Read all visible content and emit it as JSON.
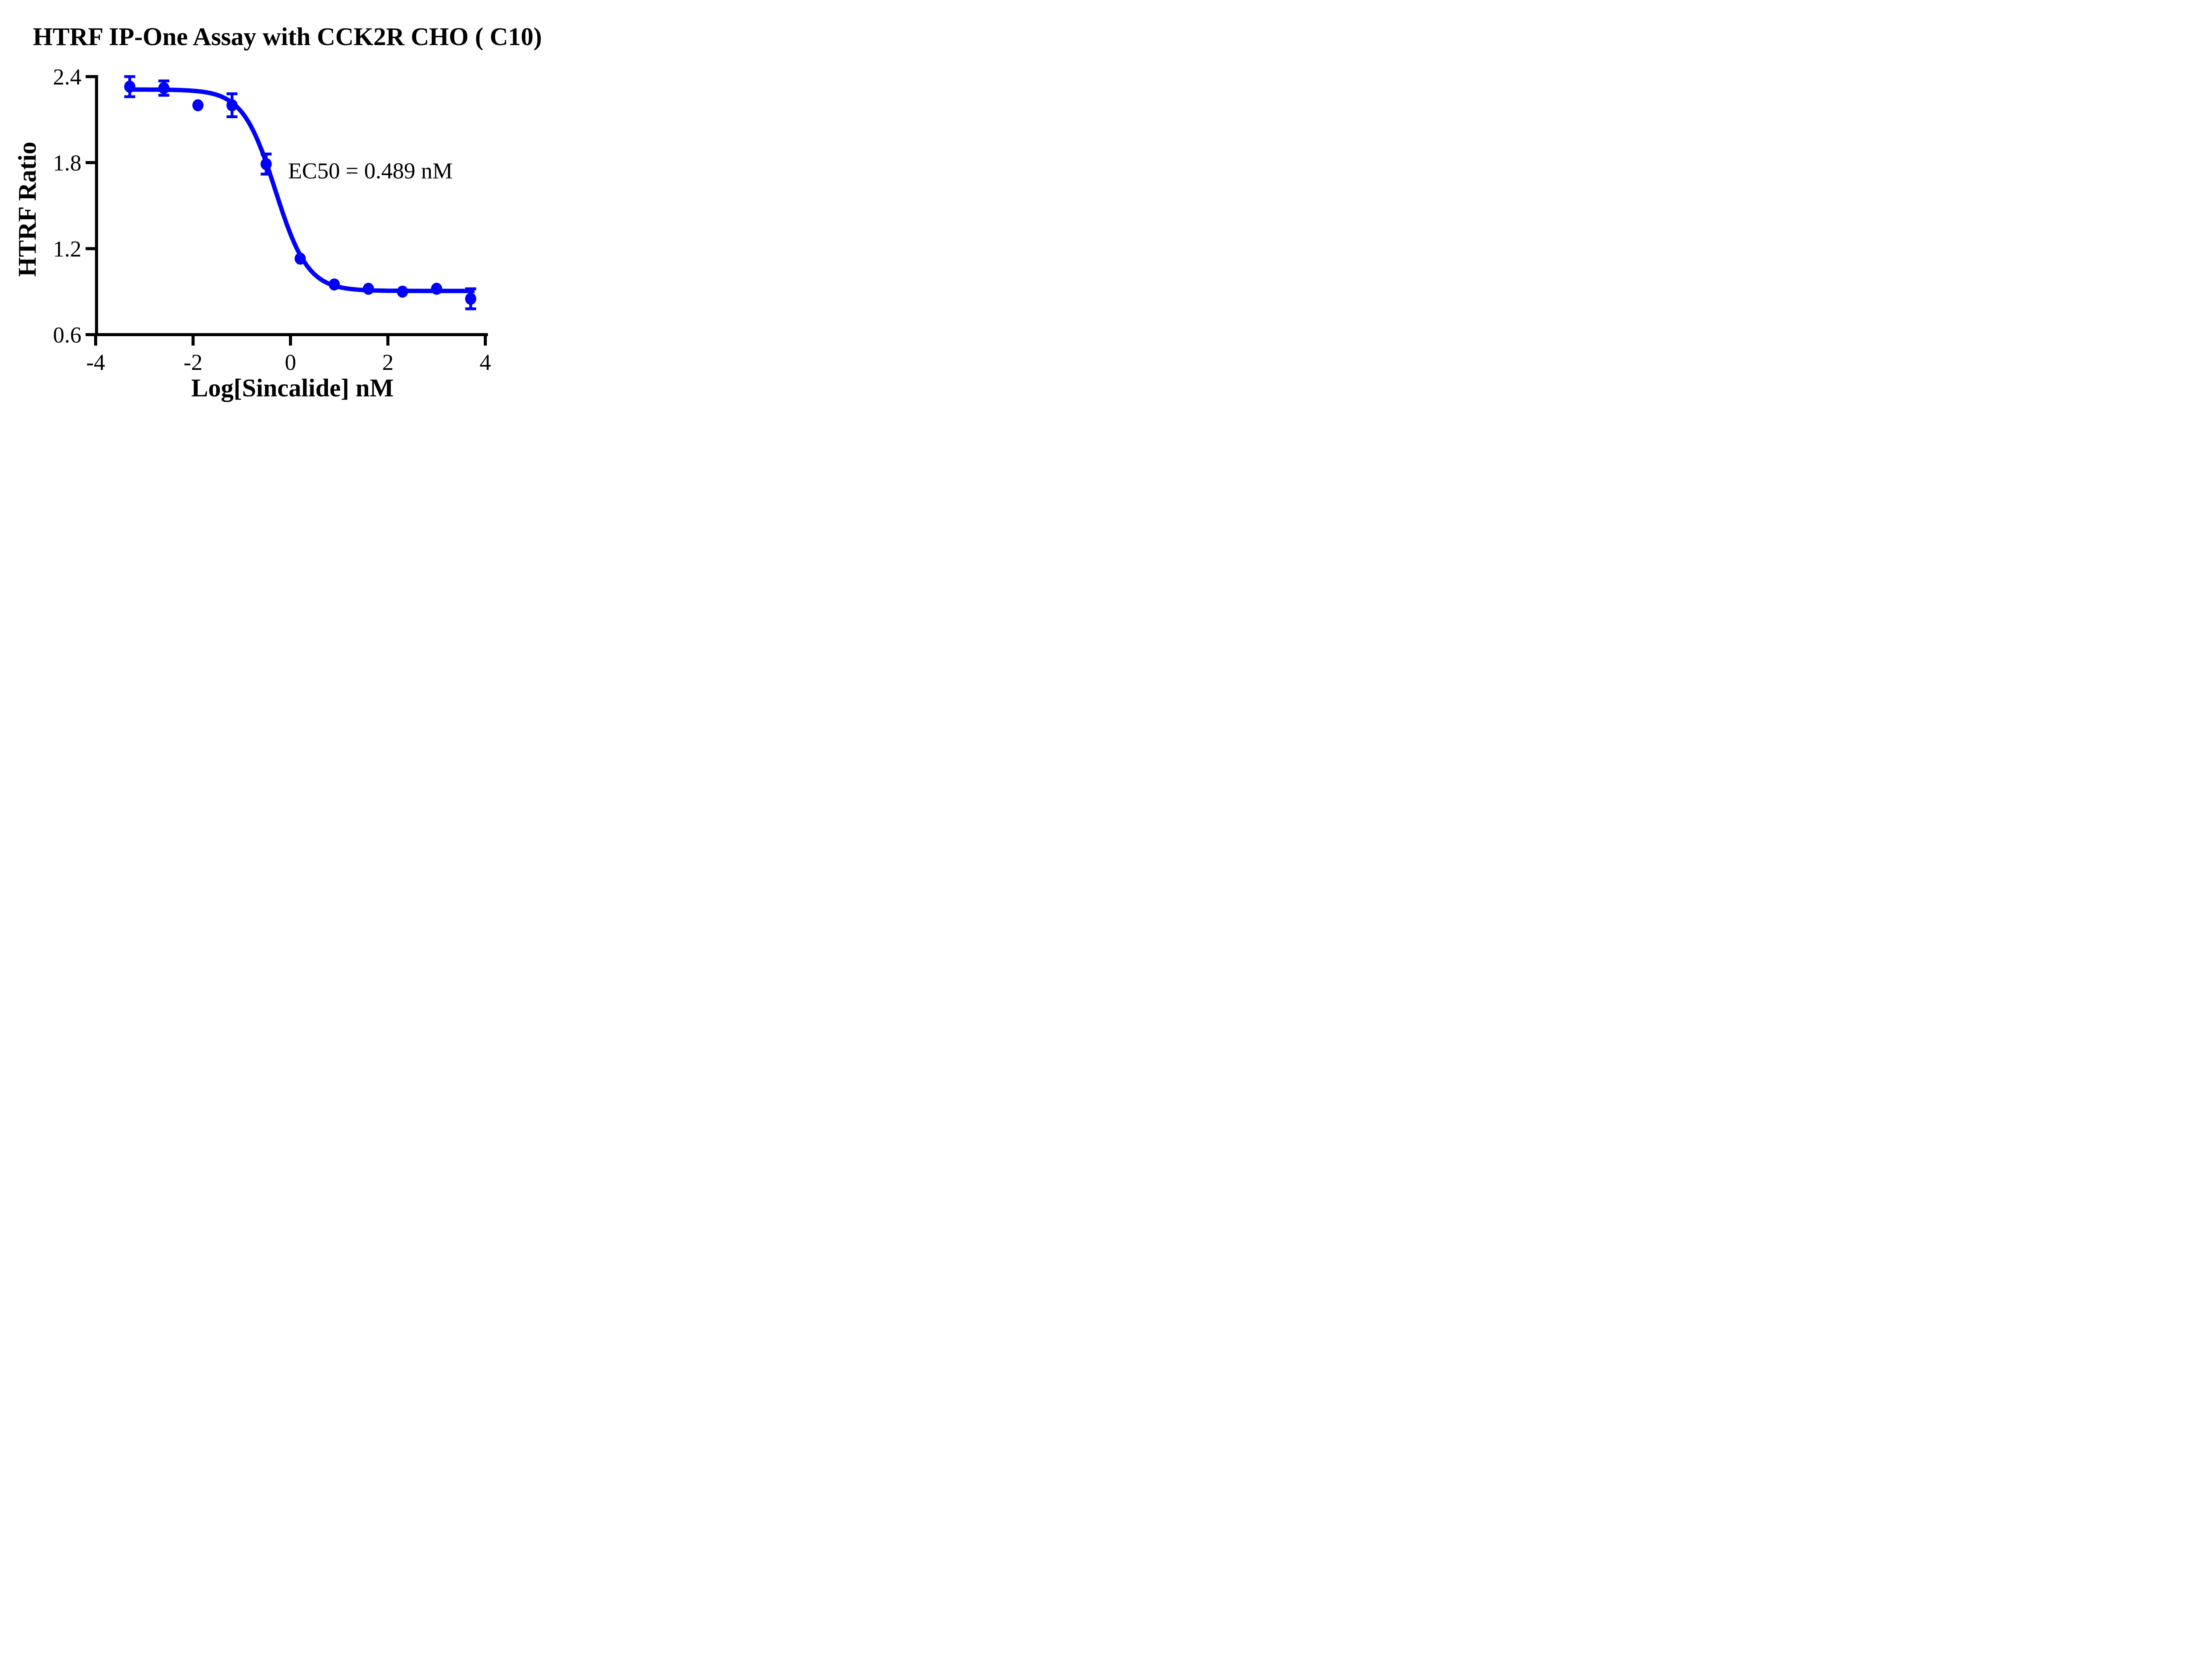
{
  "title": "HTRF IP-One Assay with CCK2R CHO ( C10)",
  "annotation": {
    "ec50_text": "EC50 = 0.489 nM"
  },
  "colors": {
    "series": "#0000FF",
    "axis": "#000000",
    "background": "#FFFFFF",
    "text": "#000000"
  },
  "chart_data": {
    "type": "scatter",
    "title": "HTRF IP-One Assay with CCK2R CHO ( C10)",
    "xlabel": "Log[Sincalide] nM",
    "ylabel": "HTRF Ratio",
    "xlim": [
      -4,
      4
    ],
    "ylim": [
      0.6,
      2.4
    ],
    "x_ticks": [
      -4,
      -2,
      0,
      2,
      4
    ],
    "x_tick_labels": [
      "-4",
      "-2",
      "0",
      "2",
      "4"
    ],
    "y_ticks": [
      0.6,
      1.2,
      1.8,
      2.4
    ],
    "y_tick_labels": [
      "0.6",
      "1.2",
      "1.8",
      "2.4"
    ],
    "grid": false,
    "legend_position": "none",
    "annotation": "EC50 = 0.489 nM",
    "ec50_nM": 0.489,
    "series": [
      {
        "name": "CCK2R CHO (C10)",
        "color": "#0000FF",
        "marker": "circle",
        "x": [
          -3.3,
          -2.6,
          -1.9,
          -1.2,
          -0.5,
          0.2,
          0.9,
          1.6,
          2.3,
          3.0,
          3.7
        ],
        "y": [
          2.33,
          2.32,
          2.2,
          2.2,
          1.79,
          1.13,
          0.95,
          0.92,
          0.9,
          0.92,
          0.85
        ],
        "y_err": [
          0.07,
          0.05,
          0.0,
          0.08,
          0.07,
          0.0,
          0.0,
          0.0,
          0.0,
          0.0,
          0.07
        ]
      }
    ],
    "fit_curve": {
      "model": "four_parameter_logistic",
      "top": 2.31,
      "bottom": 0.905,
      "log_ec50": -0.311,
      "hill_slope": 1.3,
      "x_range": [
        -3.3,
        3.78
      ],
      "color": "#0000FF"
    }
  }
}
